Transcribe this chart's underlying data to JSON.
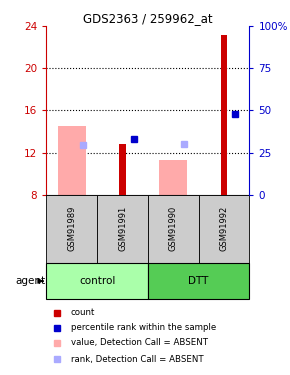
{
  "title": "GDS2363 / 259962_at",
  "samples": [
    "GSM91989",
    "GSM91991",
    "GSM91990",
    "GSM91992"
  ],
  "ylim_left": [
    8,
    24
  ],
  "ylim_right": [
    0,
    100
  ],
  "yticks_left": [
    8,
    12,
    16,
    20,
    24
  ],
  "yticks_right": [
    0,
    25,
    50,
    75,
    100
  ],
  "ytick_right_labels": [
    "0",
    "25",
    "50",
    "75",
    "100%"
  ],
  "red_bars": {
    "GSM91989": null,
    "GSM91991": 12.8,
    "GSM91990": null,
    "GSM91992": 23.2
  },
  "blue_squares": {
    "GSM91989": null,
    "GSM91991": 13.3,
    "GSM91990": null,
    "GSM91992": 15.7
  },
  "pink_bars": {
    "GSM91989": 14.5,
    "GSM91991": null,
    "GSM91990": 11.3,
    "GSM91992": null
  },
  "lightblue_squares": {
    "GSM91989": 12.7,
    "GSM91991": null,
    "GSM91990": 12.8,
    "GSM91992": null
  },
  "colors": {
    "red": "#cc0000",
    "blue": "#0000cc",
    "pink": "#ffaaaa",
    "lightblue": "#aaaaff",
    "control_bg": "#aaffaa",
    "dtt_bg": "#55cc55",
    "sample_bg": "#cccccc",
    "axis_left_color": "#cc0000",
    "axis_right_color": "#0000cc"
  },
  "legend_items": [
    {
      "label": "count",
      "color": "#cc0000"
    },
    {
      "label": "percentile rank within the sample",
      "color": "#0000cc"
    },
    {
      "label": "value, Detection Call = ABSENT",
      "color": "#ffaaaa"
    },
    {
      "label": "rank, Detection Call = ABSENT",
      "color": "#aaaaff"
    }
  ]
}
